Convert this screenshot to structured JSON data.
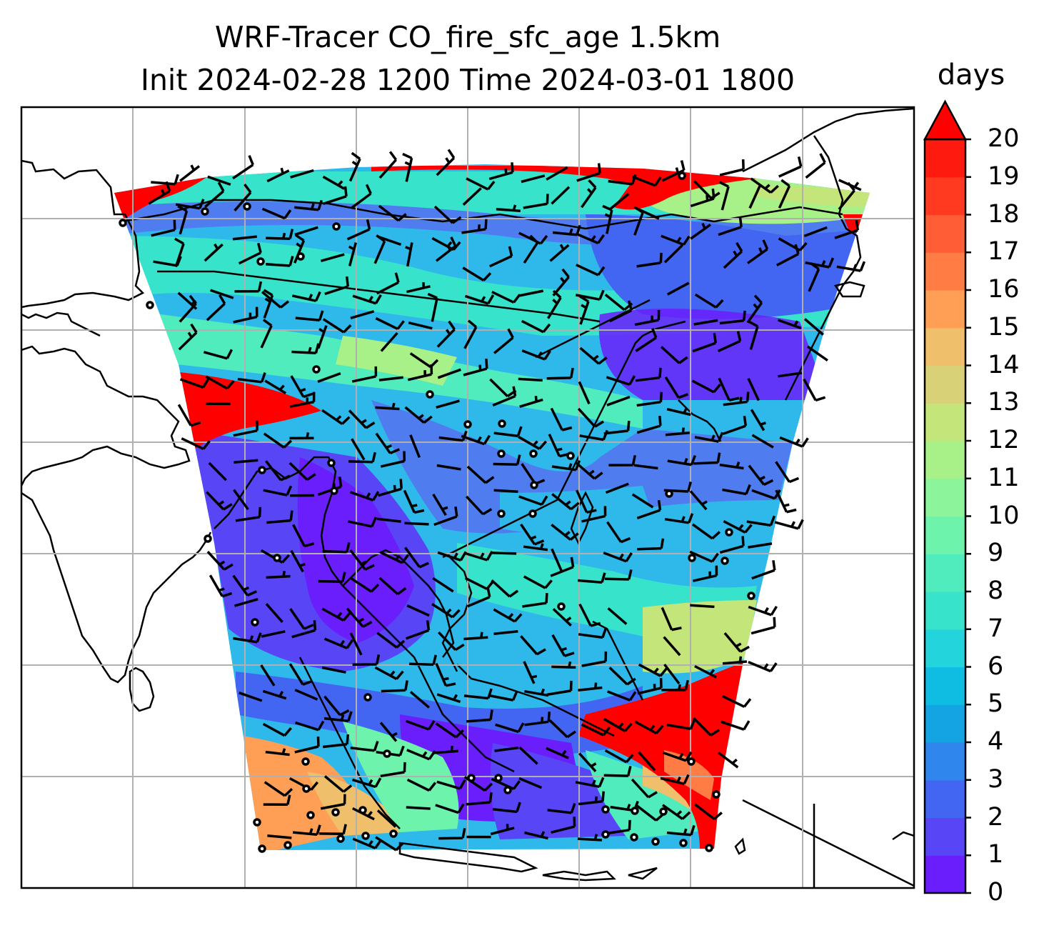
{
  "title_line1": "WRF-Tracer CO_fire_sfc_age 1.5km",
  "title_line2": "Init 2024-02-28 1200 Time 2024-03-01 1800",
  "colorbar": {
    "unit": "days",
    "ticks": [
      "0",
      "1",
      "2",
      "3",
      "4",
      "5",
      "6",
      "7",
      "8",
      "9",
      "10",
      "11",
      "12",
      "13",
      "14",
      "15",
      "16",
      "17",
      "18",
      "19",
      "20"
    ],
    "colors": [
      "#6a1efb",
      "#5745f6",
      "#4366f2",
      "#2f86ec",
      "#14a3e3",
      "#0fbde3",
      "#23d4dc",
      "#38e3cc",
      "#51ecbd",
      "#6ef3ad",
      "#8cf59b",
      "#a8f088",
      "#c4e57a",
      "#d9d178",
      "#efbf6b",
      "#ff9f56",
      "#ff7d44",
      "#ff5d35",
      "#ff3a21",
      "#ff1a10"
    ],
    "extend": "max",
    "extend_color": "#ff0000"
  },
  "map": {
    "field": "CO_fire_sfc_age",
    "region": "South and East Asia",
    "wind": "wind barbs",
    "gridlines": true
  }
}
